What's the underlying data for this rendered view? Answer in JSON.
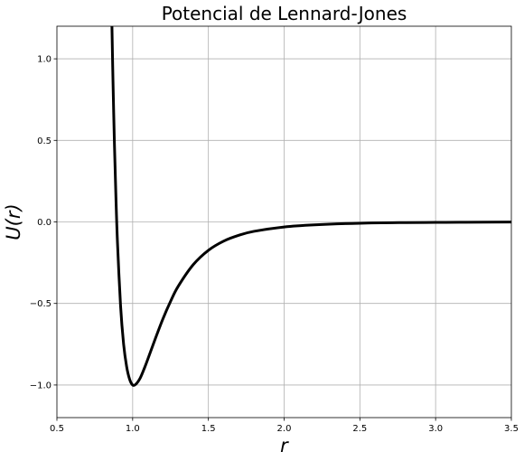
{
  "chart_data": {
    "type": "line",
    "title": "Potencial de Lennard-Jones",
    "xlabel": "r",
    "ylabel": "U(r)",
    "xlim": [
      0.5,
      3.5
    ],
    "ylim": [
      -1.2,
      1.2
    ],
    "grid": true,
    "x_ticks": [
      0.5,
      1.0,
      1.5,
      2.0,
      2.5,
      3.0,
      3.5
    ],
    "x_tick_labels": [
      "0.5",
      "1.0",
      "1.5",
      "2.0",
      "2.5",
      "3.0",
      "3.5"
    ],
    "y_ticks": [
      -1.0,
      -0.5,
      0.0,
      0.5,
      1.0
    ],
    "y_tick_labels": [
      "−1.0",
      "−0.5",
      "0.0",
      "0.5",
      "1.0"
    ],
    "series": [
      {
        "color": "#000000",
        "x": [
          0.86,
          0.87,
          0.88,
          0.89,
          0.9,
          0.92,
          0.94,
          0.96,
          0.98,
          1.0,
          1.02,
          1.05,
          1.08,
          1.1,
          1.15,
          1.2,
          1.25,
          1.3,
          1.4,
          1.5,
          1.6,
          1.7,
          1.8,
          2.0,
          2.2,
          2.5,
          2.8,
          3.0,
          3.2,
          3.5
        ],
        "y": [
          1.358,
          0.871,
          0.467,
          0.137,
          -0.131,
          -0.512,
          -0.747,
          -0.886,
          -0.965,
          -1.0,
          -0.996,
          -0.957,
          -0.891,
          -0.842,
          -0.715,
          -0.594,
          -0.488,
          -0.396,
          -0.262,
          -0.174,
          -0.118,
          -0.082,
          -0.058,
          -0.031,
          -0.018,
          -0.008,
          -0.004,
          -0.003,
          -0.002,
          -0.001
        ]
      }
    ]
  }
}
